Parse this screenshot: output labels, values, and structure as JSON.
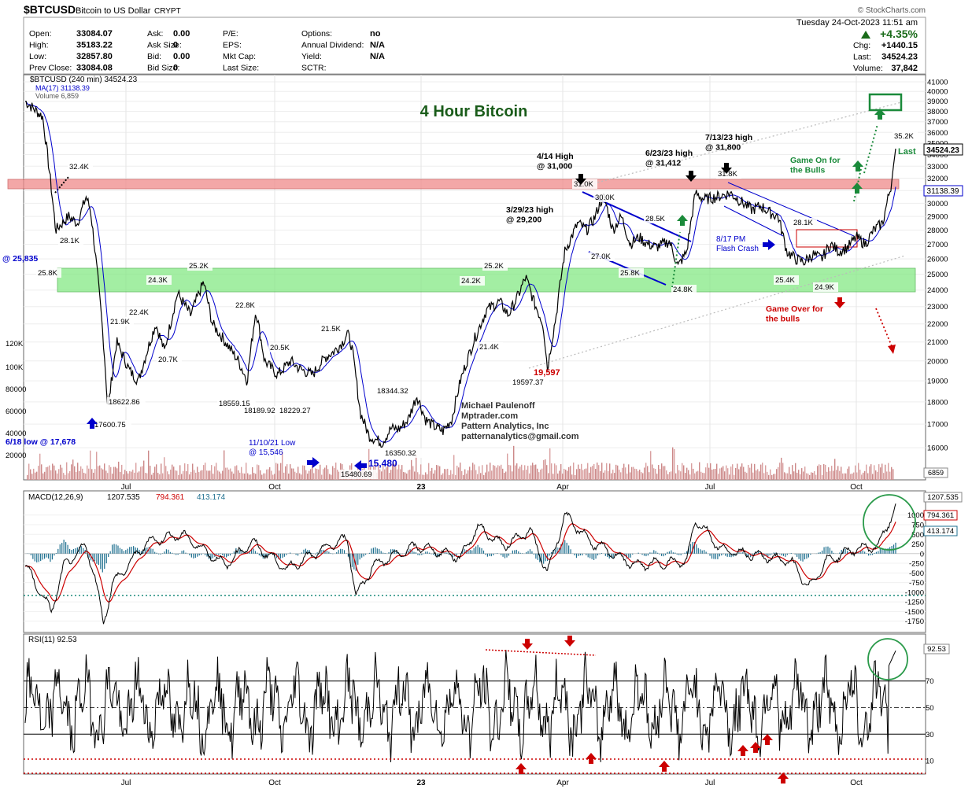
{
  "header": {
    "symbol": "$BTCUSD",
    "name": "Bitcoin to US Dollar",
    "exchange": "CRYPT",
    "watermark": "© StockCharts.com",
    "datetime": "Tuesday  24-Oct-2023  11:51 am",
    "change_pct": "+4.35%",
    "fields": [
      {
        "label": "Open:",
        "value": "33084.07"
      },
      {
        "label": "High:",
        "value": "35183.22"
      },
      {
        "label": "Low:",
        "value": "32857.80"
      },
      {
        "label": "Prev Close:",
        "value": "33084.08"
      },
      {
        "label": "Ask:",
        "value": "0.00"
      },
      {
        "label": "Ask Size:",
        "value": "0"
      },
      {
        "label": "Bid:",
        "value": "0.00"
      },
      {
        "label": "Bid Size:",
        "value": "0"
      },
      {
        "label": "P/E:",
        "value": ""
      },
      {
        "label": "EPS:",
        "value": ""
      },
      {
        "label": "Mkt Cap:",
        "value": ""
      },
      {
        "label": "Last Size:",
        "value": ""
      },
      {
        "label": "Options:",
        "value": "no"
      },
      {
        "label": "Annual Dividend:",
        "value": "N/A"
      },
      {
        "label": "Yield:",
        "value": "N/A"
      },
      {
        "label": "SCTR:",
        "value": ""
      },
      {
        "label": "Chg:",
        "value": "+1440.15"
      },
      {
        "label": "Last:",
        "value": "34524.23"
      },
      {
        "label": "Volume:",
        "value": "37,842"
      }
    ]
  },
  "colors": {
    "up": "#1a6b1a",
    "down": "#cc0000",
    "blue": "#0000cc",
    "green_zone": "#7de87d",
    "red_zone": "#f08a8a",
    "macd_hist": "#1e6f8f"
  },
  "chart_data": [
    {
      "type": "line",
      "panel": "price",
      "legend": [
        "$BTCUSD (240 min) 34524.23",
        "MA(17) 31138.39",
        "Volume 6,859"
      ],
      "title": "4 Hour Bitcoin",
      "scale": "log",
      "ylim": [
        15000,
        41000
      ],
      "x_ticks": [
        "Jul",
        "Oct",
        "23",
        "Apr",
        "Jul",
        "Oct"
      ],
      "y_ticks": [
        16000,
        17000,
        18000,
        19000,
        20000,
        21000,
        22000,
        23000,
        24000,
        25000,
        26000,
        27000,
        28000,
        29000,
        30000,
        31000,
        32000,
        33000,
        34000,
        35000,
        36000,
        37000,
        38000,
        39000,
        40000,
        41000
      ],
      "volume_ticks": [
        "120K",
        "100K",
        "80000",
        "60000",
        "40000",
        "20000"
      ],
      "price_path": [
        [
          0.0,
          39000
        ],
        [
          0.02,
          37500
        ],
        [
          0.035,
          28000
        ],
        [
          0.05,
          29000
        ],
        [
          0.06,
          28500
        ],
        [
          0.07,
          30500
        ],
        [
          0.075,
          29500
        ],
        [
          0.09,
          21000
        ],
        [
          0.095,
          17600
        ],
        [
          0.105,
          21000
        ],
        [
          0.12,
          19500
        ],
        [
          0.13,
          19000
        ],
        [
          0.15,
          22000
        ],
        [
          0.16,
          20500
        ],
        [
          0.175,
          23800
        ],
        [
          0.19,
          22500
        ],
        [
          0.205,
          24500
        ],
        [
          0.215,
          22000
        ],
        [
          0.23,
          21000
        ],
        [
          0.245,
          20000
        ],
        [
          0.255,
          19000
        ],
        [
          0.265,
          22800
        ],
        [
          0.275,
          20000
        ],
        [
          0.29,
          19300
        ],
        [
          0.305,
          20000
        ],
        [
          0.315,
          19600
        ],
        [
          0.33,
          19300
        ],
        [
          0.345,
          20200
        ],
        [
          0.355,
          20500
        ],
        [
          0.365,
          21000
        ],
        [
          0.37,
          21500
        ],
        [
          0.375,
          20800
        ],
        [
          0.385,
          17500
        ],
        [
          0.395,
          16500
        ],
        [
          0.41,
          16200
        ],
        [
          0.42,
          16800
        ],
        [
          0.43,
          16800
        ],
        [
          0.44,
          17200
        ],
        [
          0.45,
          18300
        ],
        [
          0.46,
          17200
        ],
        [
          0.47,
          16900
        ],
        [
          0.48,
          16700
        ],
        [
          0.49,
          17200
        ],
        [
          0.5,
          19000
        ],
        [
          0.515,
          21000
        ],
        [
          0.53,
          22800
        ],
        [
          0.545,
          23300
        ],
        [
          0.555,
          22500
        ],
        [
          0.565,
          23500
        ],
        [
          0.575,
          24800
        ],
        [
          0.585,
          23200
        ],
        [
          0.595,
          22000
        ],
        [
          0.6,
          19600
        ],
        [
          0.61,
          22500
        ],
        [
          0.62,
          26500
        ],
        [
          0.635,
          28500
        ],
        [
          0.645,
          28000
        ],
        [
          0.655,
          29000
        ],
        [
          0.66,
          30000
        ],
        [
          0.665,
          30500
        ],
        [
          0.675,
          28000
        ],
        [
          0.685,
          29000
        ],
        [
          0.695,
          27000
        ],
        [
          0.705,
          27500
        ],
        [
          0.715,
          27000
        ],
        [
          0.725,
          26800
        ],
        [
          0.74,
          27200
        ],
        [
          0.75,
          25500
        ],
        [
          0.76,
          26500
        ],
        [
          0.77,
          30800
        ],
        [
          0.78,
          30300
        ],
        [
          0.795,
          30500
        ],
        [
          0.81,
          30800
        ],
        [
          0.825,
          30000
        ],
        [
          0.835,
          29500
        ],
        [
          0.845,
          29800
        ],
        [
          0.855,
          29300
        ],
        [
          0.865,
          29000
        ],
        [
          0.875,
          26500
        ],
        [
          0.885,
          26000
        ],
        [
          0.895,
          25800
        ],
        [
          0.905,
          26300
        ],
        [
          0.915,
          26000
        ],
        [
          0.925,
          27000
        ],
        [
          0.935,
          26500
        ],
        [
          0.945,
          26800
        ],
        [
          0.955,
          27500
        ],
        [
          0.965,
          27000
        ],
        [
          0.975,
          28000
        ],
        [
          0.985,
          28500
        ],
        [
          0.99,
          30000
        ],
        [
          0.995,
          31500
        ],
        [
          1.0,
          34524
        ]
      ],
      "labels": [
        {
          "text": "32.4K",
          "value": 32400
        },
        {
          "text": "28.1K",
          "value": 28100
        },
        {
          "text": "25.8K",
          "value": 25800
        },
        {
          "text": "24.3K",
          "value": 24300
        },
        {
          "text": "25.2K",
          "value": 25200
        },
        {
          "text": "22.4K",
          "value": 22400
        },
        {
          "text": "21.9K",
          "value": 21900
        },
        {
          "text": "20.7K",
          "value": 20700
        },
        {
          "text": "18622.86",
          "value": 18622.86
        },
        {
          "text": "17600.75",
          "value": 17600.75
        },
        {
          "text": "22.8K",
          "value": 22800
        },
        {
          "text": "20.5K",
          "value": 20500
        },
        {
          "text": "18559.15",
          "value": 18559.15
        },
        {
          "text": "18189.92",
          "value": 18189.92
        },
        {
          "text": "18229.27",
          "value": 18229.27
        },
        {
          "text": "21.5K",
          "value": 21500
        },
        {
          "text": "18344.32",
          "value": 18344.32
        },
        {
          "text": "16350.32",
          "value": 16350.32
        },
        {
          "text": "15480.69",
          "value": 15480.69
        },
        {
          "text": "24.2K",
          "value": 24200
        },
        {
          "text": "25.2K",
          "value": 25200
        },
        {
          "text": "21.4K",
          "value": 21400
        },
        {
          "text": "19597.37",
          "value": 19597.37
        },
        {
          "text": "31.0K",
          "value": 31000
        },
        {
          "text": "30.0K",
          "value": 30000
        },
        {
          "text": "27.0K",
          "value": 27000
        },
        {
          "text": "28.5K",
          "value": 28500
        },
        {
          "text": "25.8K",
          "value": 25800
        },
        {
          "text": "24.8K",
          "value": 24800
        },
        {
          "text": "31.8K",
          "value": 31800
        },
        {
          "text": "28.1K",
          "value": 28100
        },
        {
          "text": "25.4K",
          "value": 25400
        },
        {
          "text": "24.9K",
          "value": 24900
        },
        {
          "text": "35.2K",
          "value": 35200
        }
      ],
      "annotations": [
        "4/14 High\n@ 31,000",
        "6/23/23 high\n@ 31,412",
        "7/13/23 high\n@ 31,800",
        "3/29/23 high\n@ 29,200",
        "Game On for\nthe Bulls",
        "8/17 PM\nFlash Crash",
        "Game Over for\nthe bulls",
        "@ 25,835",
        "6/18 low @ 17,678",
        "11/10/21 Low\n@ 15,546",
        "15,480",
        "19,597",
        "Michael Paulenoff\nMptrader.com\nPattern Analytics, Inc\npatternanalytics@gmail.com"
      ],
      "last_value": 34524.23,
      "ma_value": 31138.39,
      "volume_value": "6859",
      "last_label": "Last"
    },
    {
      "type": "line",
      "panel": "macd",
      "legend": [
        "MACD(12,26,9)",
        "1207.535",
        "794.361",
        "413.174"
      ],
      "y_ticks": [
        1000,
        750,
        500,
        250,
        0,
        -250,
        -500,
        -750,
        -1000,
        -1250,
        -1500,
        -1750
      ],
      "ylim": [
        -1900,
        1300
      ],
      "values_right": [
        "1207.535",
        "794.361",
        "413.174"
      ]
    },
    {
      "type": "line",
      "panel": "rsi",
      "legend": [
        "RSI(11) 92.53"
      ],
      "y_ticks": [
        10,
        30,
        50,
        70
      ],
      "ylim": [
        0,
        100
      ],
      "value_right": "92.53"
    }
  ]
}
